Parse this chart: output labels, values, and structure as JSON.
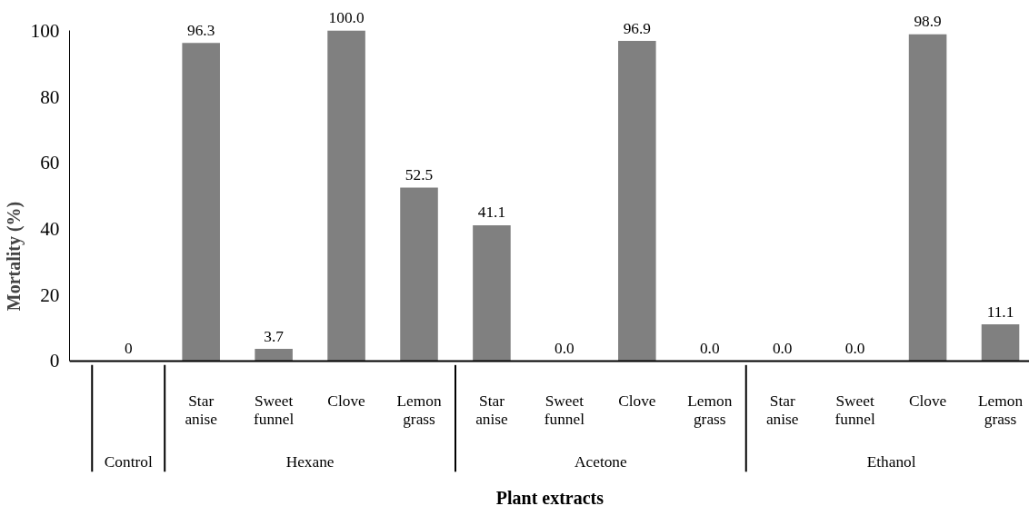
{
  "chart_data": {
    "type": "bar",
    "categories": [
      null,
      "Star anise",
      "Sweet funnel",
      "Clove",
      "Lemon grass",
      "Star anise",
      "Sweet funnel",
      "Clove",
      "Lemon grass",
      "Star anise",
      "Sweet funnel",
      "Clove",
      "Lemon grass"
    ],
    "values": [
      0,
      96.3,
      3.7,
      100.0,
      52.5,
      41.1,
      0.0,
      96.9,
      0.0,
      0.0,
      0.0,
      98.9,
      11.1
    ],
    "value_labels": [
      "0",
      "96.3",
      "3.7",
      "100.0",
      "52.5",
      "41.1",
      "0.0",
      "96.9",
      "0.0",
      "0.0",
      "0.0",
      "98.9",
      "11.1"
    ],
    "color": "#808080",
    "ylim": [
      0,
      100
    ],
    "yticks": [
      0,
      20,
      40,
      60,
      80,
      100
    ],
    "xlabel": "Plant extracts",
    "ylabel": "Mortality (%)",
    "annotations": [
      "Control",
      "Hexane",
      "Acetone",
      "Ethanol"
    ],
    "grid": false
  }
}
